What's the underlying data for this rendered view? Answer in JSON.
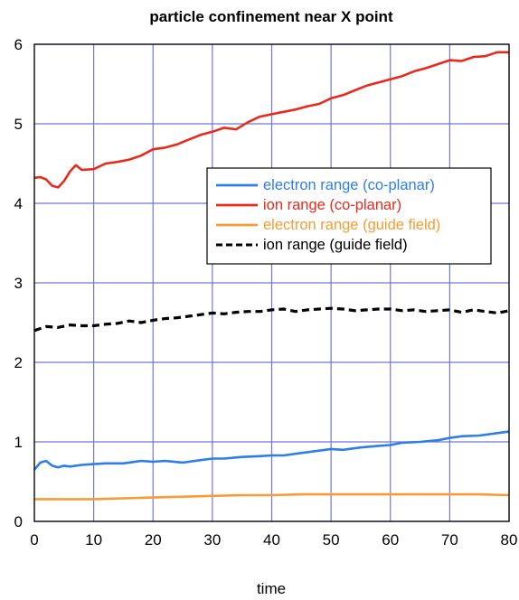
{
  "chart_data": {
    "type": "line",
    "title": "particle confinement near X point",
    "xlabel": "time",
    "ylabel": "",
    "xlim": [
      0,
      80
    ],
    "ylim": [
      0,
      6
    ],
    "xticks": [
      0,
      10,
      20,
      30,
      40,
      50,
      60,
      70,
      80
    ],
    "yticks": [
      0,
      1,
      2,
      3,
      4,
      5,
      6
    ],
    "grid": true,
    "legend_position": "right-center",
    "series": [
      {
        "name": "electron range (co-planar)",
        "color": "#2f7ee6",
        "style": "solid",
        "x": [
          0,
          1,
          2,
          3,
          4,
          5,
          6,
          8,
          10,
          12,
          15,
          18,
          20,
          22,
          25,
          28,
          30,
          32,
          35,
          38,
          40,
          42,
          45,
          48,
          50,
          52,
          55,
          58,
          60,
          62,
          65,
          68,
          70,
          72,
          75,
          78,
          80
        ],
        "y": [
          0.65,
          0.74,
          0.76,
          0.7,
          0.68,
          0.7,
          0.69,
          0.71,
          0.72,
          0.73,
          0.73,
          0.76,
          0.75,
          0.76,
          0.74,
          0.77,
          0.79,
          0.79,
          0.81,
          0.82,
          0.83,
          0.83,
          0.86,
          0.89,
          0.91,
          0.9,
          0.93,
          0.95,
          0.96,
          0.99,
          1.0,
          1.02,
          1.05,
          1.07,
          1.08,
          1.11,
          1.13
        ]
      },
      {
        "name": "ion range (co-planar)",
        "color": "#e82a1c",
        "style": "solid",
        "x": [
          0,
          1,
          2,
          3,
          4,
          5,
          6,
          7,
          8,
          10,
          12,
          14,
          16,
          18,
          20,
          22,
          24,
          26,
          28,
          30,
          32,
          34,
          36,
          38,
          40,
          42,
          44,
          46,
          48,
          50,
          52,
          54,
          56,
          58,
          60,
          62,
          64,
          66,
          68,
          70,
          72,
          74,
          76,
          78,
          80
        ],
        "y": [
          4.32,
          4.33,
          4.3,
          4.22,
          4.2,
          4.28,
          4.4,
          4.48,
          4.42,
          4.43,
          4.5,
          4.52,
          4.55,
          4.6,
          4.68,
          4.7,
          4.74,
          4.8,
          4.86,
          4.9,
          4.95,
          4.93,
          5.02,
          5.09,
          5.12,
          5.15,
          5.18,
          5.22,
          5.25,
          5.32,
          5.36,
          5.42,
          5.48,
          5.52,
          5.56,
          5.6,
          5.66,
          5.7,
          5.75,
          5.8,
          5.79,
          5.84,
          5.85,
          5.9,
          5.9
        ]
      },
      {
        "name": "electron range (guide field)",
        "color": "#f59d34",
        "style": "solid",
        "x": [
          0,
          5,
          10,
          15,
          20,
          25,
          30,
          35,
          40,
          45,
          50,
          55,
          60,
          65,
          70,
          75,
          80
        ],
        "y": [
          0.28,
          0.28,
          0.28,
          0.29,
          0.3,
          0.31,
          0.32,
          0.33,
          0.33,
          0.34,
          0.34,
          0.34,
          0.34,
          0.34,
          0.34,
          0.34,
          0.33
        ]
      },
      {
        "name": "ion range (guide field)",
        "color": "#000000",
        "style": "dashed",
        "x": [
          0,
          2,
          4,
          6,
          8,
          10,
          12,
          14,
          16,
          18,
          20,
          22,
          24,
          26,
          28,
          30,
          32,
          34,
          36,
          38,
          40,
          42,
          44,
          46,
          48,
          50,
          52,
          54,
          56,
          58,
          60,
          62,
          64,
          66,
          68,
          70,
          72,
          74,
          76,
          78,
          80
        ],
        "y": [
          2.4,
          2.45,
          2.44,
          2.47,
          2.46,
          2.46,
          2.48,
          2.49,
          2.52,
          2.5,
          2.53,
          2.55,
          2.56,
          2.58,
          2.6,
          2.62,
          2.61,
          2.63,
          2.64,
          2.64,
          2.66,
          2.67,
          2.64,
          2.66,
          2.67,
          2.68,
          2.67,
          2.65,
          2.66,
          2.67,
          2.67,
          2.65,
          2.66,
          2.64,
          2.65,
          2.66,
          2.63,
          2.66,
          2.64,
          2.62,
          2.65
        ]
      }
    ]
  }
}
